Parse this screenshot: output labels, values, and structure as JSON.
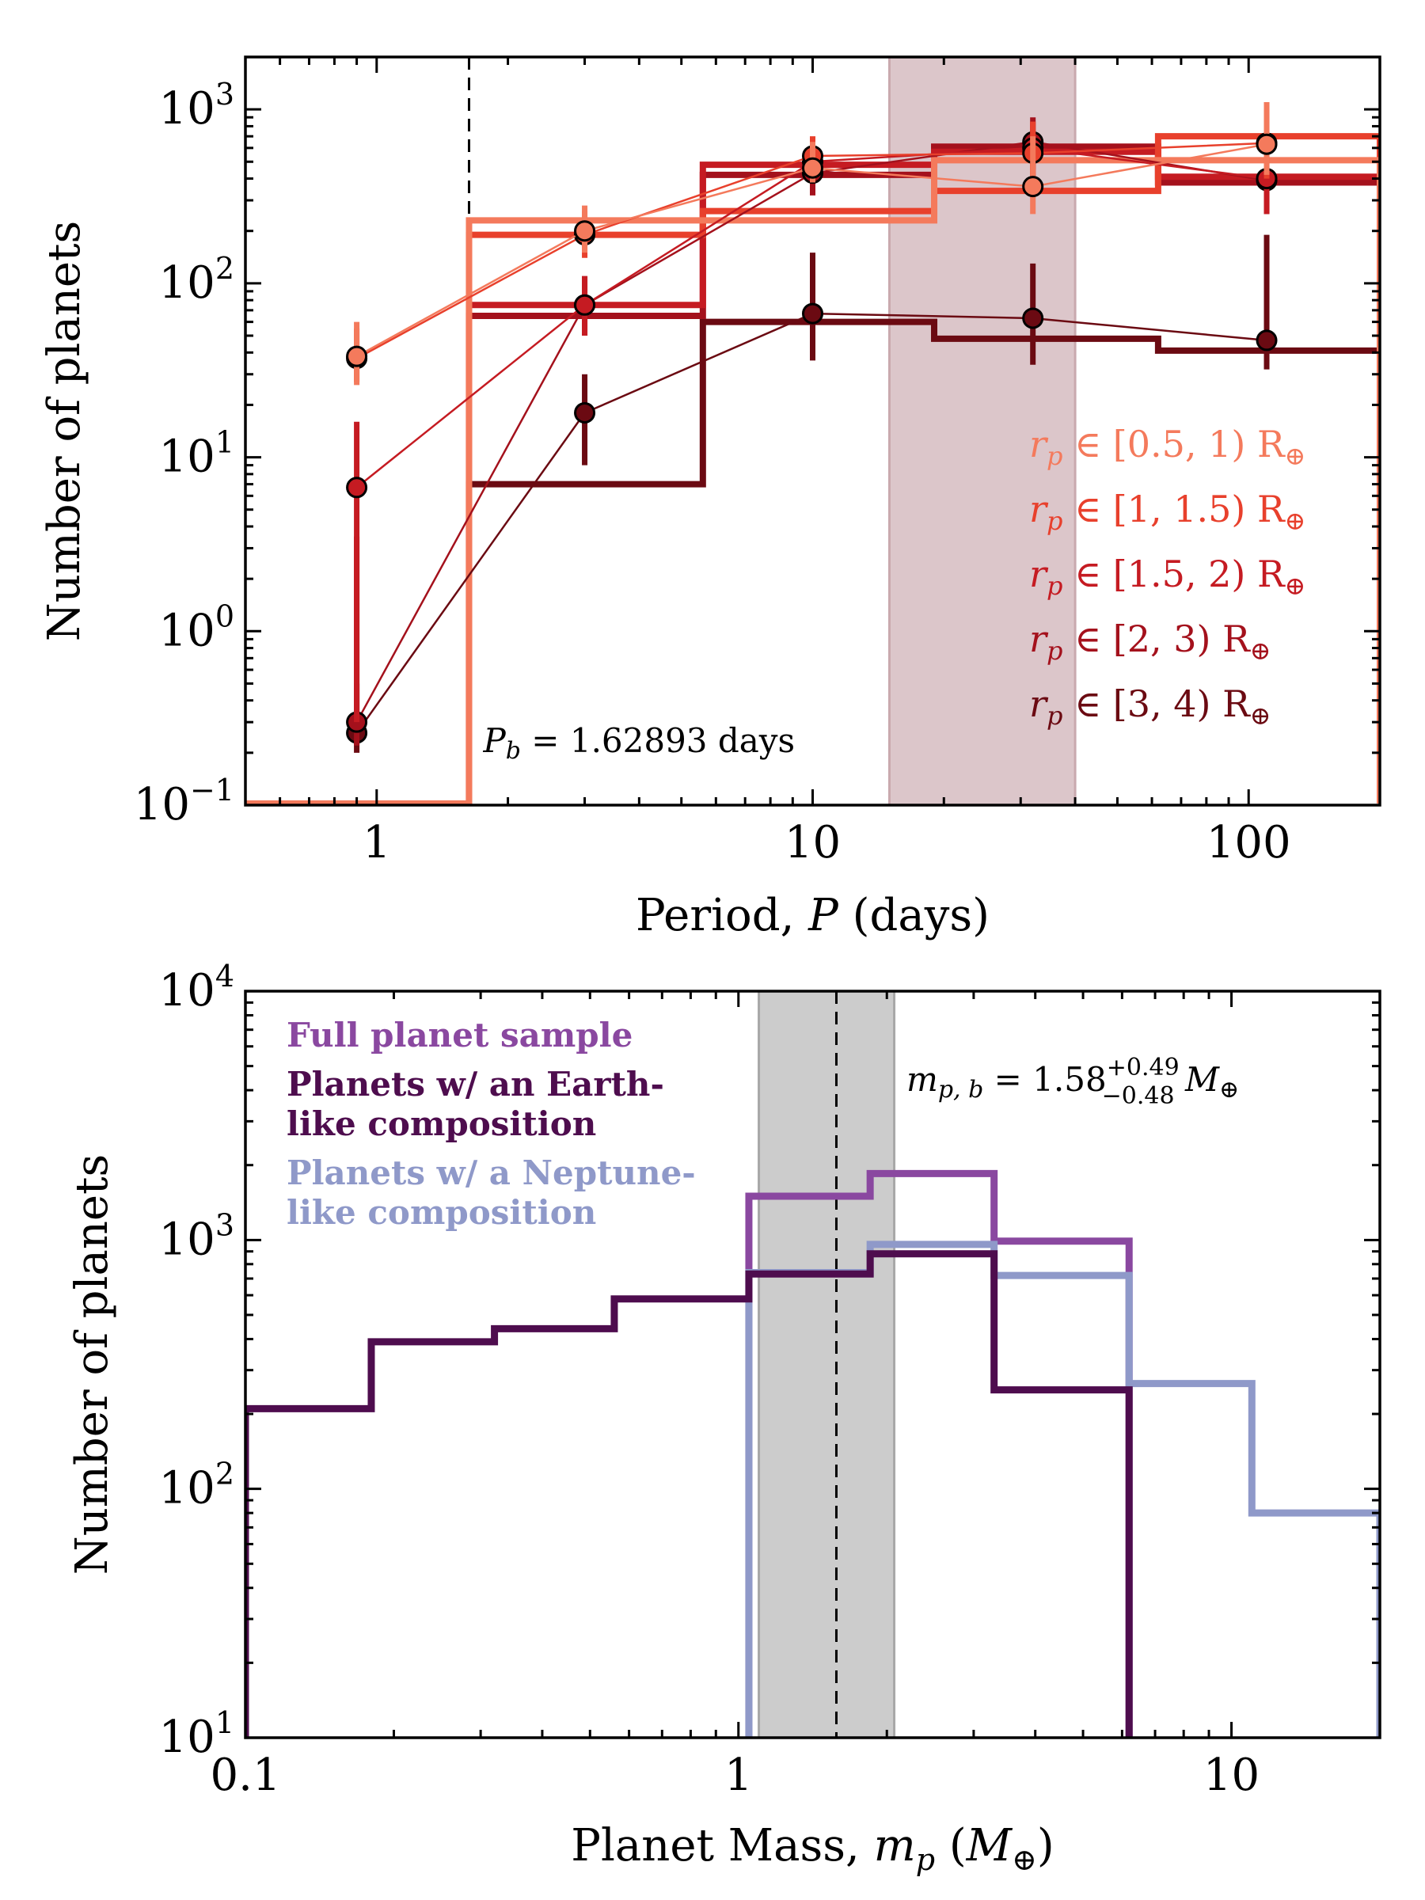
{
  "chart_data": [
    {
      "type": "step-histogram-with-points",
      "xscale": "log",
      "yscale": "log",
      "xlim": [
        0.5,
        200
      ],
      "ylim": [
        0.1,
        2000
      ],
      "xlabel": "Period, P (days)",
      "ylabel": "Number of planets",
      "x_ticks": [
        1,
        10,
        100
      ],
      "x_tick_labels": [
        "1",
        "10",
        "100"
      ],
      "y_ticks": [
        0.1,
        1,
        10,
        100,
        1000
      ],
      "y_tick_labels": [
        {
          "base": "10",
          "exp": "−1"
        },
        {
          "base": "10",
          "exp": "0"
        },
        {
          "base": "10",
          "exp": "1"
        },
        {
          "base": "10",
          "exp": "2"
        },
        {
          "base": "10",
          "exp": "3"
        }
      ],
      "bin_edges": [
        1.62893,
        5.6,
        19,
        62,
        200
      ],
      "vline": {
        "x": 1.62893,
        "style": "dashed",
        "label": "P_b = 1.62893 days",
        "label_italic": "P",
        "label_sub": "b",
        "label_rest": "= 1.62893 days"
      },
      "band": {
        "x0": 15,
        "x1": 40,
        "color": "#dcc6ca"
      },
      "point_x": [
        0.9,
        3,
        10,
        32,
        110
      ],
      "series": [
        {
          "name": "r_p ∈ [0.5, 1) R⊕",
          "range": "[0.5, 1)",
          "color": "#f47a5c",
          "hist": [
            230,
            230,
            510,
            510
          ],
          "points": [
            38,
            200,
            460,
            360,
            630
          ],
          "err_low": [
            26,
            150,
            380,
            250,
            420
          ],
          "err_high": [
            60,
            280,
            650,
            700,
            1100
          ]
        },
        {
          "name": "r_p ∈ [1, 1.5) R⊕",
          "range": "[1, 1.5)",
          "color": "#e8402c",
          "hist": [
            190,
            260,
            340,
            700
          ],
          "points": [
            37,
            190,
            540,
            560,
            640
          ],
          "err_low": [
            27,
            140,
            420,
            380,
            400
          ],
          "err_high": [
            55,
            260,
            700,
            850,
            1000
          ]
        },
        {
          "name": "r_p ∈ [1.5, 2) R⊕",
          "range": "[1.5, 2)",
          "color": "#c51b22",
          "hist": [
            75,
            480,
            570,
            410
          ],
          "points": [
            6.7,
            75,
            500,
            600,
            400
          ],
          "err_low": [
            0.3,
            50,
            380,
            400,
            250
          ],
          "err_high": [
            16,
            110,
            650,
            850,
            650
          ]
        },
        {
          "name": "r_p ∈ [2, 3) R⊕",
          "range": "[2, 3)",
          "color": "#a4111c",
          "hist": [
            65,
            420,
            610,
            380
          ],
          "points": [
            0.3,
            75,
            430,
            650,
            390
          ],
          "err_low": [
            0.22,
            50,
            320,
            450,
            250
          ],
          "err_high": [
            3.5,
            110,
            600,
            900,
            650
          ]
        },
        {
          "name": "r_p ∈ [3, 4) R⊕",
          "range": "[3, 4)",
          "color": "#6b0a12",
          "hist": [
            7,
            60,
            48,
            41
          ],
          "points": [
            0.26,
            18,
            67,
            63,
            47
          ],
          "err_low": [
            0.2,
            9,
            36,
            34,
            32
          ],
          "err_high": [
            0.5,
            30,
            150,
            130,
            190
          ]
        }
      ],
      "legend_placement": "right",
      "grid": false
    },
    {
      "type": "step-histogram",
      "xscale": "log",
      "yscale": "log",
      "xlim": [
        0.1,
        20
      ],
      "ylim": [
        10,
        10000
      ],
      "xlabel": "Planet Mass, m_p (M⊕)",
      "ylabel": "Number of planets",
      "x_ticks": [
        0.1,
        1,
        10
      ],
      "x_tick_labels": [
        "0.1",
        "1",
        "10"
      ],
      "y_ticks": [
        10,
        100,
        1000,
        10000
      ],
      "y_tick_labels": [
        {
          "base": "10",
          "exp": "1"
        },
        {
          "base": "10",
          "exp": "2"
        },
        {
          "base": "10",
          "exp": "3"
        },
        {
          "base": "10",
          "exp": "4"
        }
      ],
      "vline": {
        "x": 1.58,
        "style": "dashed"
      },
      "band": {
        "x0": 1.1,
        "x1": 2.07,
        "color": "#cccccc"
      },
      "annotation": {
        "prefix": "m",
        "sub": "p, b",
        "rest": "= 1.58",
        "sup_err": "+0.49",
        "sub_err": "−0.48",
        "unit": "M⊕"
      },
      "series": [
        {
          "name": "Full planet sample",
          "color": "#8a48a0",
          "edges": [
            1.05,
            1.85,
            3.3,
            6.2
          ],
          "values": [
            1500,
            1850,
            990
          ]
        },
        {
          "name": "Planets w/ an Earth-like composition",
          "legend_lines": [
            "Planets w/ an Earth-",
            "like composition"
          ],
          "color": "#4e0d4e",
          "edges": [
            0.1,
            0.18,
            0.32,
            0.56,
            1.05,
            1.85,
            3.3,
            6.2
          ],
          "values": [
            210,
            390,
            440,
            580,
            730,
            880,
            250
          ]
        },
        {
          "name": "Planets w/ a Neptune-like composition",
          "legend_lines": [
            "Planets w/ a Neptune-",
            "like composition"
          ],
          "color": "#8f99c9",
          "edges": [
            1.05,
            1.85,
            3.3,
            6.2,
            11,
            20
          ],
          "values": [
            740,
            960,
            720,
            265,
            80
          ]
        }
      ],
      "legend_placement": "top-left",
      "grid": false
    }
  ]
}
